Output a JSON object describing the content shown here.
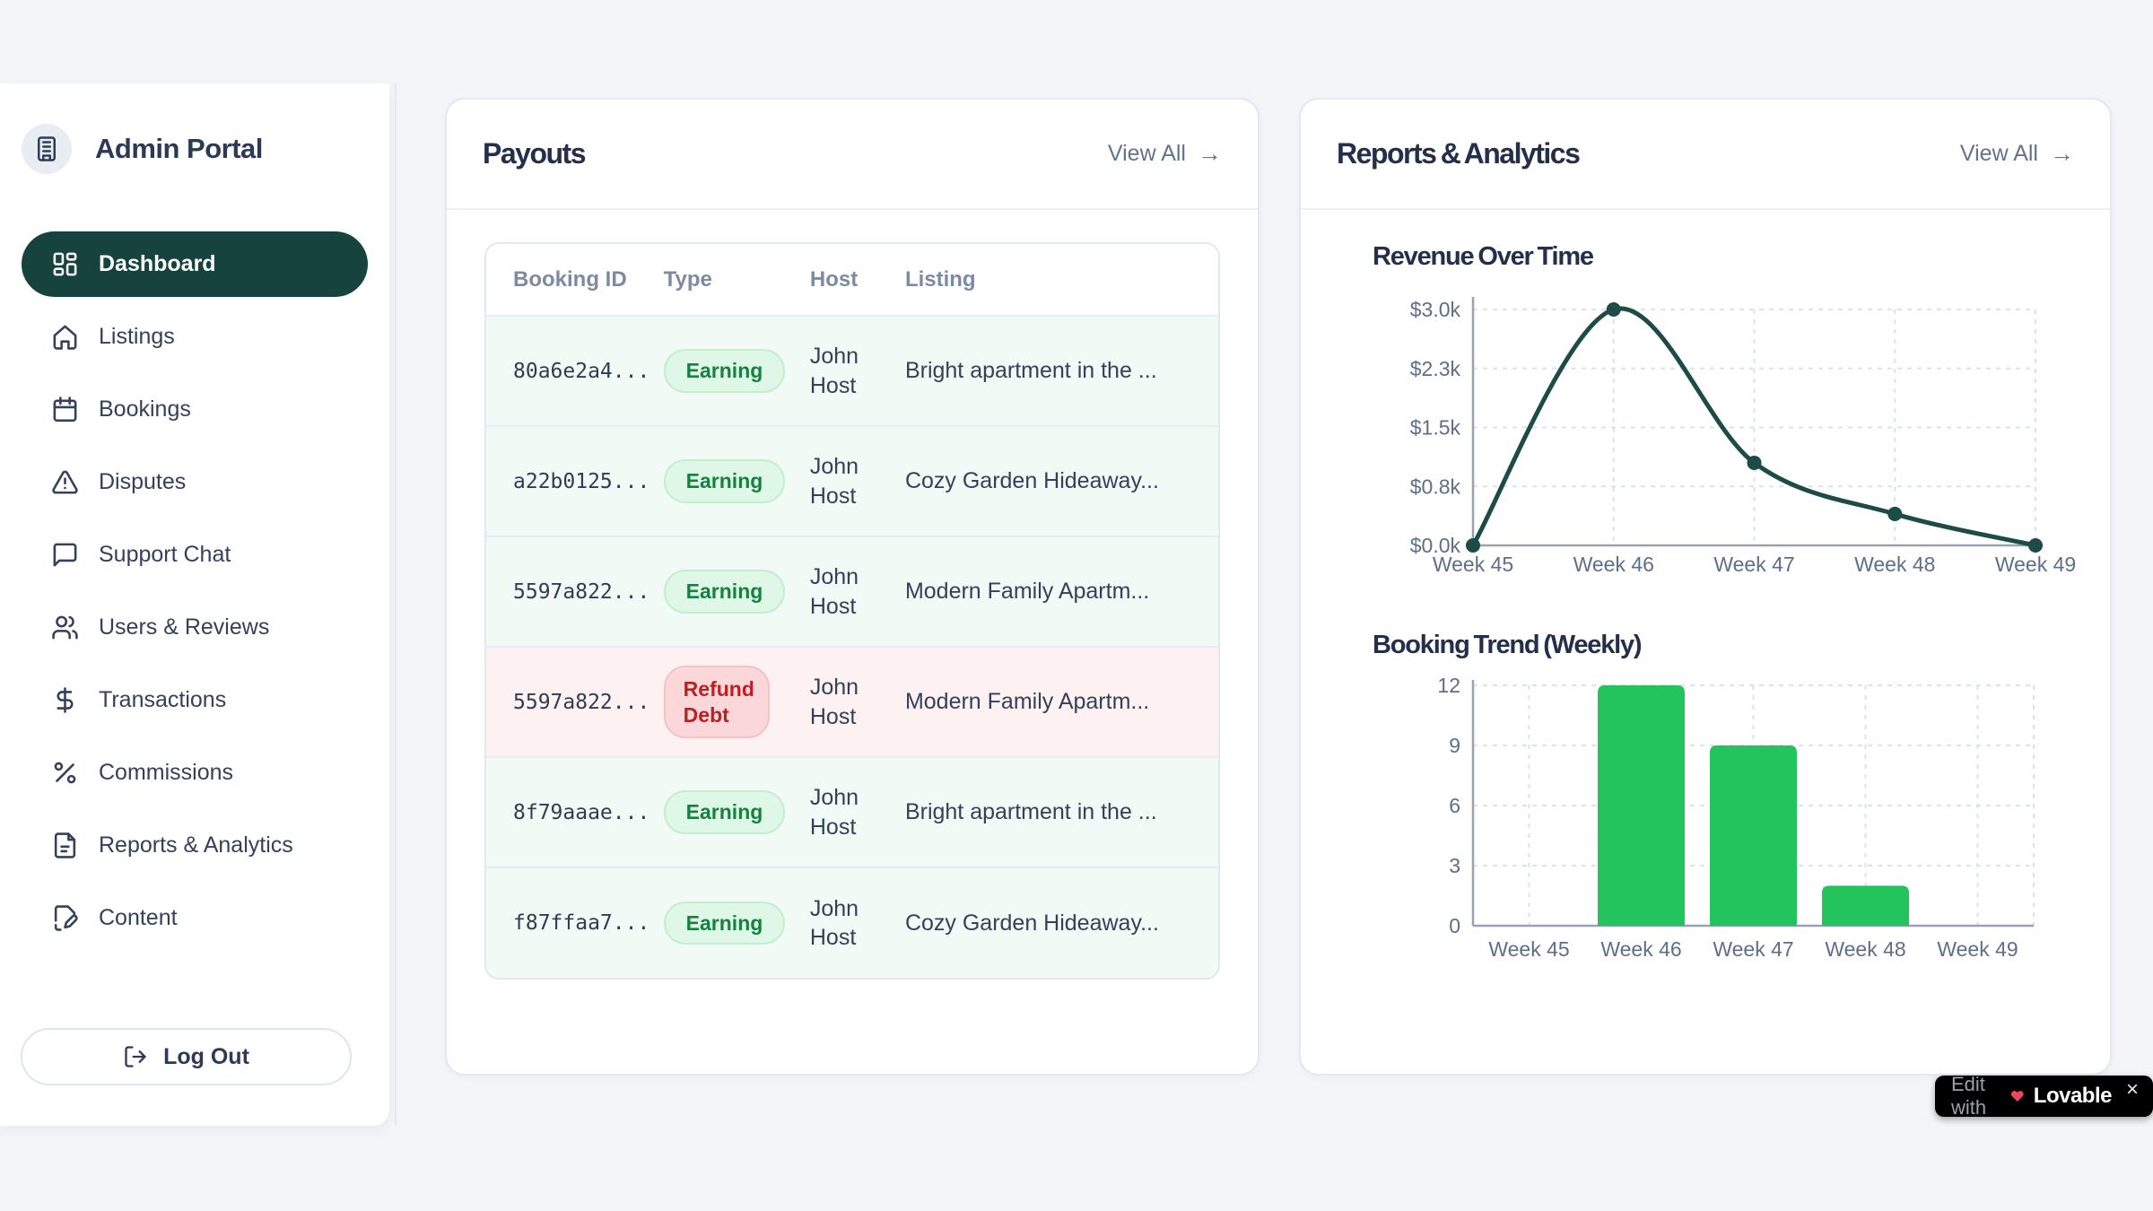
{
  "app": {
    "background": "#f3f5f8",
    "accent_dark_teal": "#17433e",
    "accent_green": "#23c45e"
  },
  "sidebar": {
    "brand": "Admin Portal",
    "items": [
      {
        "label": "Dashboard",
        "icon": "dashboard-grid-icon",
        "active": true
      },
      {
        "label": "Listings",
        "icon": "home-icon",
        "active": false
      },
      {
        "label": "Bookings",
        "icon": "calendar-icon",
        "active": false
      },
      {
        "label": "Disputes",
        "icon": "warning-triangle-icon",
        "active": false
      },
      {
        "label": "Support Chat",
        "icon": "chat-bubble-icon",
        "active": false
      },
      {
        "label": "Users & Reviews",
        "icon": "users-icon",
        "active": false
      },
      {
        "label": "Transactions",
        "icon": "dollar-icon",
        "active": false
      },
      {
        "label": "Commissions",
        "icon": "percent-icon",
        "active": false
      },
      {
        "label": "Reports & Analytics",
        "icon": "document-icon",
        "active": false
      },
      {
        "label": "Content",
        "icon": "file-pen-icon",
        "active": false
      }
    ],
    "logout_label": "Log Out"
  },
  "payouts": {
    "title": "Payouts",
    "view_all_label": "View All",
    "table": {
      "headers": [
        "Booking ID",
        "Type",
        "Host",
        "Listing"
      ],
      "rows": [
        {
          "booking_id": "80a6e2a4...",
          "type": "Earning",
          "variant": "earning",
          "host": "John Host",
          "listing": "Bright apartment in the ..."
        },
        {
          "booking_id": "a22b0125...",
          "type": "Earning",
          "variant": "earning",
          "host": "John Host",
          "listing": "Cozy Garden Hideaway..."
        },
        {
          "booking_id": "5597a822...",
          "type": "Earning",
          "variant": "earning",
          "host": "John Host",
          "listing": "Modern Family Apartm..."
        },
        {
          "booking_id": "5597a822...",
          "type": "Refund Debt",
          "variant": "refund",
          "host": "John Host",
          "listing": "Modern Family Apartm..."
        },
        {
          "booking_id": "8f79aaae...",
          "type": "Earning",
          "variant": "earning",
          "host": "John Host",
          "listing": "Bright apartment in the ..."
        },
        {
          "booking_id": "f87ffaa7...",
          "type": "Earning",
          "variant": "earning",
          "host": "John Host",
          "listing": "Cozy Garden Hideaway..."
        }
      ]
    }
  },
  "reports": {
    "title": "Reports & Analytics",
    "view_all_label": "View All"
  },
  "chart_data": [
    {
      "type": "line",
      "title": "Revenue Over Time",
      "x": [
        "Week 45",
        "Week 46",
        "Week 47",
        "Week 48",
        "Week 49"
      ],
      "values": [
        0,
        3000,
        1050,
        400,
        0
      ],
      "y_tick_labels": [
        "$3.0k",
        "$2.3k",
        "$1.5k",
        "$0.8k",
        "$0.0k"
      ],
      "y_tick_values": [
        3000,
        2250,
        1500,
        750,
        0
      ],
      "ylim": [
        0,
        3000
      ],
      "xlabel": "",
      "ylabel": "",
      "grid": "dashed",
      "legend": false,
      "line_color": "#1d4b45"
    },
    {
      "type": "bar",
      "title": "Booking Trend (Weekly)",
      "categories": [
        "Week 45",
        "Week 46",
        "Week 47",
        "Week 48",
        "Week 49"
      ],
      "values": [
        0,
        12,
        9,
        2,
        0
      ],
      "y_ticks": [
        0,
        3,
        6,
        9,
        12
      ],
      "ylim": [
        0,
        12
      ],
      "xlabel": "",
      "ylabel": "",
      "grid": "dashed",
      "legend": false,
      "bar_color": "#23c45e"
    }
  ],
  "lovable_badge": {
    "prefix": "Edit with",
    "brand": "Lovable",
    "close_label": "×"
  }
}
